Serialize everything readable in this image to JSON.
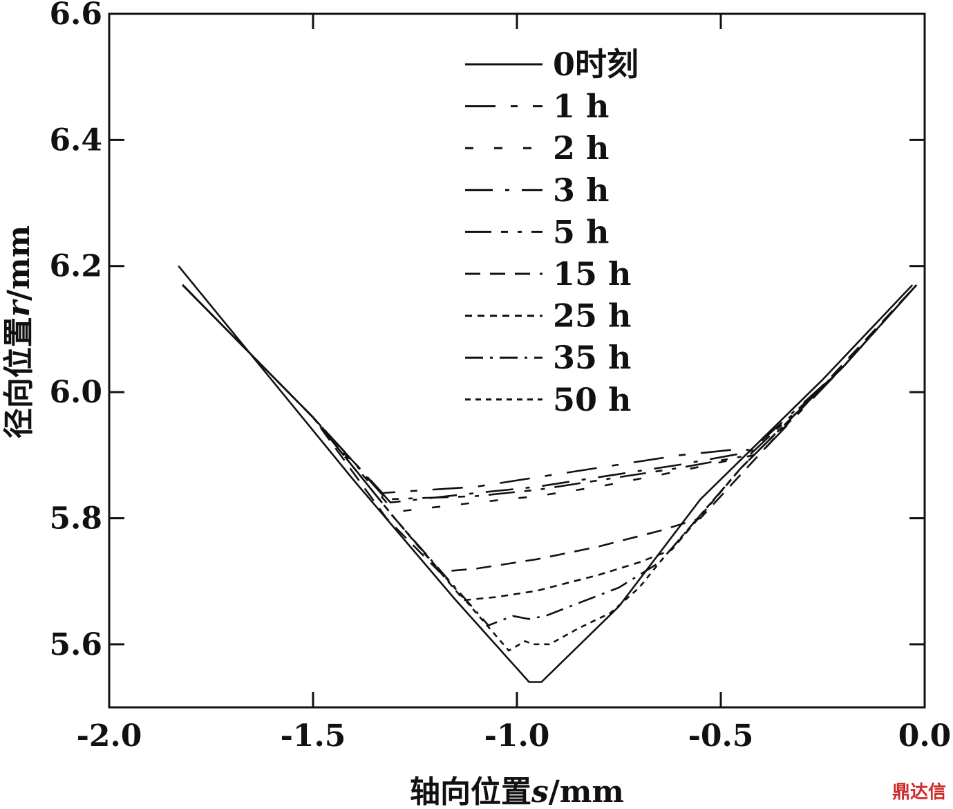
{
  "chart_data": {
    "type": "line",
    "title": "",
    "xlabel": "轴向位置s/mm",
    "xlabel_parts": {
      "before": "轴向位置",
      "var": "s",
      "after": "/mm"
    },
    "ylabel": "径向位置r/mm",
    "ylabel_parts": {
      "before": "径向位置",
      "var": "r",
      "after": "/mm"
    },
    "xlim": [
      -2.0,
      0.0
    ],
    "ylim": [
      5.5,
      6.6
    ],
    "xticks": [
      -2.0,
      -1.5,
      -1.0,
      -0.5,
      0.0
    ],
    "xtick_labels": [
      "-2.0",
      "-1.5",
      "-1.0",
      "-0.5",
      "0.0"
    ],
    "yticks": [
      5.6,
      5.8,
      6.0,
      6.2,
      6.4,
      6.6
    ],
    "ytick_labels": [
      "5.6",
      "5.8",
      "6.0",
      "6.2",
      "6.4",
      "6.6"
    ],
    "grid": false,
    "legend_position": "top-center",
    "series": [
      {
        "name": "0时刻",
        "dash": "none",
        "points": [
          [
            -1.83,
            6.2
          ],
          [
            -1.4,
            5.86
          ],
          [
            -1.15,
            5.67
          ],
          [
            -0.97,
            5.54
          ],
          [
            -0.94,
            5.54
          ],
          [
            -0.75,
            5.66
          ],
          [
            -0.55,
            5.83
          ],
          [
            -0.25,
            6.02
          ],
          [
            -0.03,
            6.17
          ]
        ]
      },
      {
        "name": "1 h",
        "dash": "long-short",
        "points": [
          [
            -1.82,
            6.17
          ],
          [
            -1.5,
            5.96
          ],
          [
            -1.33,
            5.84
          ],
          [
            -1.1,
            5.85
          ],
          [
            -0.95,
            5.865
          ],
          [
            -0.8,
            5.88
          ],
          [
            -0.6,
            5.9
          ],
          [
            -0.45,
            5.91
          ],
          [
            -0.4,
            5.905
          ],
          [
            -0.2,
            6.04
          ],
          [
            -0.02,
            6.17
          ]
        ]
      },
      {
        "name": "2 h",
        "dash": "sparse",
        "points": [
          [
            -1.82,
            6.17
          ],
          [
            -1.5,
            5.96
          ],
          [
            -1.3,
            5.81
          ],
          [
            -1.1,
            5.825
          ],
          [
            -0.95,
            5.835
          ],
          [
            -0.8,
            5.85
          ],
          [
            -0.6,
            5.875
          ],
          [
            -0.42,
            5.9
          ],
          [
            -0.2,
            6.04
          ],
          [
            -0.02,
            6.17
          ]
        ]
      },
      {
        "name": "3 h",
        "dash": "long-dot",
        "points": [
          [
            -1.82,
            6.17
          ],
          [
            -1.5,
            5.96
          ],
          [
            -1.31,
            5.825
          ],
          [
            -1.1,
            5.84
          ],
          [
            -0.95,
            5.85
          ],
          [
            -0.8,
            5.865
          ],
          [
            -0.6,
            5.885
          ],
          [
            -0.43,
            5.905
          ],
          [
            -0.2,
            6.04
          ],
          [
            -0.02,
            6.17
          ]
        ]
      },
      {
        "name": "5 h",
        "dash": "long-short-short",
        "points": [
          [
            -1.82,
            6.17
          ],
          [
            -1.5,
            5.96
          ],
          [
            -1.32,
            5.83
          ],
          [
            -1.1,
            5.835
          ],
          [
            -0.95,
            5.845
          ],
          [
            -0.8,
            5.86
          ],
          [
            -0.6,
            5.88
          ],
          [
            -0.43,
            5.9
          ],
          [
            -0.2,
            6.04
          ],
          [
            -0.02,
            6.17
          ]
        ]
      },
      {
        "name": "15 h",
        "dash": "medium",
        "points": [
          [
            -1.82,
            6.17
          ],
          [
            -1.5,
            5.96
          ],
          [
            -1.32,
            5.8
          ],
          [
            -1.19,
            5.715
          ],
          [
            -1.1,
            5.72
          ],
          [
            -0.95,
            5.735
          ],
          [
            -0.8,
            5.755
          ],
          [
            -0.65,
            5.78
          ],
          [
            -0.55,
            5.8
          ],
          [
            -0.35,
            5.94
          ],
          [
            -0.02,
            6.17
          ]
        ]
      },
      {
        "name": "25 h",
        "dash": "short",
        "points": [
          [
            -1.82,
            6.17
          ],
          [
            -1.5,
            5.96
          ],
          [
            -1.3,
            5.8
          ],
          [
            -1.13,
            5.67
          ],
          [
            -1.05,
            5.675
          ],
          [
            -0.95,
            5.685
          ],
          [
            -0.8,
            5.71
          ],
          [
            -0.7,
            5.73
          ],
          [
            -0.62,
            5.75
          ],
          [
            -0.45,
            5.88
          ],
          [
            -0.2,
            6.04
          ],
          [
            -0.02,
            6.17
          ]
        ]
      },
      {
        "name": "35 h",
        "dash": "dash-dot",
        "points": [
          [
            -1.82,
            6.17
          ],
          [
            -1.5,
            5.96
          ],
          [
            -1.3,
            5.8
          ],
          [
            -1.07,
            5.63
          ],
          [
            -1.01,
            5.645
          ],
          [
            -0.97,
            5.64
          ],
          [
            -0.93,
            5.645
          ],
          [
            -0.85,
            5.665
          ],
          [
            -0.75,
            5.69
          ],
          [
            -0.65,
            5.73
          ],
          [
            -0.45,
            5.88
          ],
          [
            -0.2,
            6.04
          ],
          [
            -0.02,
            6.17
          ]
        ]
      },
      {
        "name": "50 h",
        "dash": "fine",
        "points": [
          [
            -1.82,
            6.17
          ],
          [
            -1.5,
            5.96
          ],
          [
            -1.3,
            5.8
          ],
          [
            -1.02,
            5.59
          ],
          [
            -0.98,
            5.605
          ],
          [
            -0.96,
            5.6
          ],
          [
            -0.92,
            5.6
          ],
          [
            -0.85,
            5.625
          ],
          [
            -0.77,
            5.65
          ],
          [
            -0.7,
            5.69
          ],
          [
            -0.65,
            5.73
          ],
          [
            -0.45,
            5.88
          ],
          [
            -0.2,
            6.04
          ],
          [
            -0.02,
            6.17
          ]
        ]
      }
    ]
  },
  "watermark_text": "鼎达信"
}
